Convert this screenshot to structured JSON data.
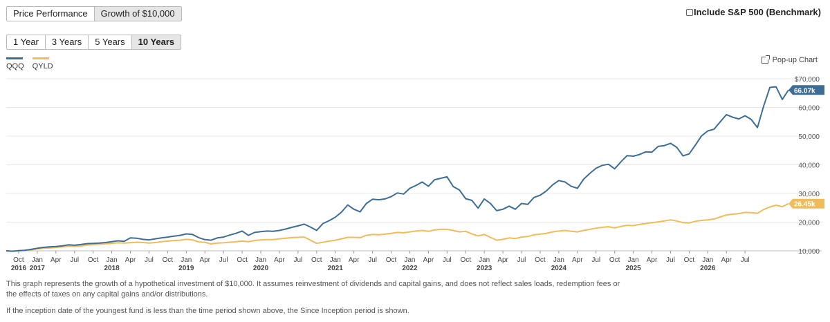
{
  "view_tabs": [
    {
      "label": "Price Performance",
      "active": false
    },
    {
      "label": "Growth of $10,000",
      "active": true
    }
  ],
  "range_tabs": [
    {
      "label": "1 Year",
      "active": false
    },
    {
      "label": "3 Years",
      "active": false
    },
    {
      "label": "5 Years",
      "active": false
    },
    {
      "label": "10 Years",
      "active": true
    }
  ],
  "benchmark": {
    "label": "Include S&P 500 (Benchmark)",
    "checked": false
  },
  "popup_label": "Pop-up Chart",
  "footnote_1": "This graph represents the growth of a hypothetical investment of $10,000. It assumes reinvestment of dividends and capital gains, and does not reflect sales loads, redemption fees or the effects of taxes on any capital gains and/or distributions.",
  "footnote_2": "If the inception date of the youngest fund is less than the time period shown above, the Since Inception period is shown.",
  "chart_data": {
    "type": "line",
    "x_start": "2016-08",
    "x_step": "month",
    "y_ticks": [
      "10,000",
      "20,000",
      "30,000",
      "40,000",
      "50,000",
      "60,000",
      "$70,000"
    ],
    "ylim": [
      10000,
      70000
    ],
    "x_ticks": [
      {
        "date": "2016-10",
        "month": "Oct",
        "year": "2016"
      },
      {
        "date": "2017-01",
        "month": "Jan",
        "year": "2017"
      },
      {
        "date": "2017-04",
        "month": "Apr",
        "year": ""
      },
      {
        "date": "2017-07",
        "month": "Jul",
        "year": ""
      },
      {
        "date": "2017-10",
        "month": "Oct",
        "year": ""
      },
      {
        "date": "2018-01",
        "month": "Jan",
        "year": "2018"
      },
      {
        "date": "2018-04",
        "month": "Apr",
        "year": ""
      },
      {
        "date": "2018-07",
        "month": "Jul",
        "year": ""
      },
      {
        "date": "2018-10",
        "month": "Oct",
        "year": ""
      },
      {
        "date": "2019-01",
        "month": "Jan",
        "year": "2019"
      },
      {
        "date": "2019-04",
        "month": "Apr",
        "year": ""
      },
      {
        "date": "2019-07",
        "month": "Jul",
        "year": ""
      },
      {
        "date": "2019-10",
        "month": "Oct",
        "year": ""
      },
      {
        "date": "2020-01",
        "month": "Jan",
        "year": "2020"
      },
      {
        "date": "2020-04",
        "month": "Apr",
        "year": ""
      },
      {
        "date": "2020-07",
        "month": "Jul",
        "year": ""
      },
      {
        "date": "2020-10",
        "month": "Oct",
        "year": ""
      },
      {
        "date": "2021-01",
        "month": "Jan",
        "year": "2021"
      },
      {
        "date": "2021-04",
        "month": "Apr",
        "year": ""
      },
      {
        "date": "2021-07",
        "month": "Jul",
        "year": ""
      },
      {
        "date": "2021-10",
        "month": "Oct",
        "year": ""
      },
      {
        "date": "2022-01",
        "month": "Jan",
        "year": "2022"
      },
      {
        "date": "2022-04",
        "month": "Apr",
        "year": ""
      },
      {
        "date": "2022-07",
        "month": "Jul",
        "year": ""
      },
      {
        "date": "2022-10",
        "month": "Oct",
        "year": ""
      },
      {
        "date": "2023-01",
        "month": "Jan",
        "year": "2023"
      },
      {
        "date": "2023-04",
        "month": "Apr",
        "year": ""
      },
      {
        "date": "2023-07",
        "month": "Jul",
        "year": ""
      },
      {
        "date": "2023-10",
        "month": "Oct",
        "year": ""
      },
      {
        "date": "2024-01",
        "month": "Jan",
        "year": "2024"
      },
      {
        "date": "2024-04",
        "month": "Apr",
        "year": ""
      },
      {
        "date": "2024-07",
        "month": "Jul",
        "year": ""
      },
      {
        "date": "2024-10",
        "month": "Oct",
        "year": ""
      },
      {
        "date": "2025-01",
        "month": "Jan",
        "year": "2025"
      },
      {
        "date": "2025-04",
        "month": "Apr",
        "year": ""
      },
      {
        "date": "2025-07",
        "month": "Jul",
        "year": ""
      },
      {
        "date": "2025-10",
        "month": "Oct",
        "year": ""
      },
      {
        "date": "2026-01",
        "month": "Jan",
        "year": "2026"
      },
      {
        "date": "2026-04",
        "month": "Apr",
        "year": ""
      },
      {
        "date": "2026-07",
        "month": "Jul",
        "year": ""
      }
    ],
    "grid": true,
    "legend_position": "top-left",
    "series": [
      {
        "name": "QQQ",
        "color": "#3d6d94",
        "end_label": "66.07k",
        "values": [
          10000,
          9850,
          10050,
          10200,
          10500,
          10900,
          11200,
          11400,
          11500,
          11700,
          12100,
          11950,
          12200,
          12500,
          12600,
          12700,
          12900,
          13200,
          13500,
          13300,
          14500,
          14400,
          14000,
          13800,
          14200,
          14500,
          14800,
          15100,
          15400,
          15900,
          15700,
          14600,
          13900,
          13700,
          14500,
          14800,
          15500,
          16100,
          16900,
          15400,
          16400,
          16700,
          16900,
          16800,
          17100,
          17600,
          18200,
          18700,
          19300,
          18300,
          17100,
          19500,
          20500,
          21700,
          23500,
          26000,
          24500,
          23600,
          26500,
          28000,
          27800,
          28100,
          28900,
          30200,
          29800,
          31800,
          32800,
          34000,
          32500,
          34800,
          35300,
          35800,
          32400,
          31200,
          28200,
          27600,
          24900,
          28100,
          26500,
          24000,
          24500,
          25600,
          24500,
          26500,
          26200,
          28600,
          29400,
          30900,
          33000,
          34500,
          34000,
          32500,
          31800,
          35000,
          37000,
          38800,
          39800,
          40200,
          38600,
          41000,
          43200,
          43000,
          43600,
          44500,
          44400,
          46400,
          46700,
          47500,
          46100,
          43100,
          43800,
          46900,
          50100,
          51800,
          52400,
          55000,
          57500,
          56600,
          56000,
          57100,
          55800,
          53000,
          60500,
          67000,
          67200,
          62800,
          66070
        ]
      },
      {
        "name": "QYLD",
        "color": "#f0bb5a",
        "end_label": "26.45k",
        "values": [
          10000,
          9900,
          10050,
          10150,
          10300,
          10700,
          10900,
          11000,
          11200,
          11350,
          11600,
          11500,
          11700,
          12000,
          12150,
          12300,
          12450,
          12600,
          12800,
          12700,
          12850,
          13000,
          12900,
          12700,
          12900,
          13200,
          13400,
          13600,
          13700,
          14000,
          13800,
          13100,
          13000,
          12400,
          12700,
          12800,
          13000,
          13200,
          13400,
          13200,
          13600,
          13800,
          13900,
          13900,
          14200,
          14400,
          14600,
          14700,
          14800,
          13700,
          12600,
          13000,
          13400,
          13700,
          14200,
          14700,
          14700,
          14600,
          15400,
          15700,
          15600,
          15800,
          16100,
          16400,
          16300,
          16600,
          16900,
          17100,
          16800,
          17300,
          17500,
          17500,
          17100,
          16600,
          16800,
          15900,
          15200,
          15700,
          14700,
          13700,
          14000,
          14500,
          14300,
          14800,
          15000,
          15600,
          15800,
          16100,
          16600,
          16900,
          17100,
          16800,
          16600,
          17100,
          17500,
          17900,
          18200,
          18400,
          18000,
          18500,
          18900,
          18800,
          19200,
          19500,
          19800,
          20100,
          20400,
          20800,
          20400,
          19800,
          19700,
          20300,
          20600,
          20800,
          21100,
          21800,
          22500,
          22800,
          23000,
          23400,
          23300,
          23100,
          24400,
          25300,
          25900,
          25400,
          26450
        ]
      }
    ]
  }
}
